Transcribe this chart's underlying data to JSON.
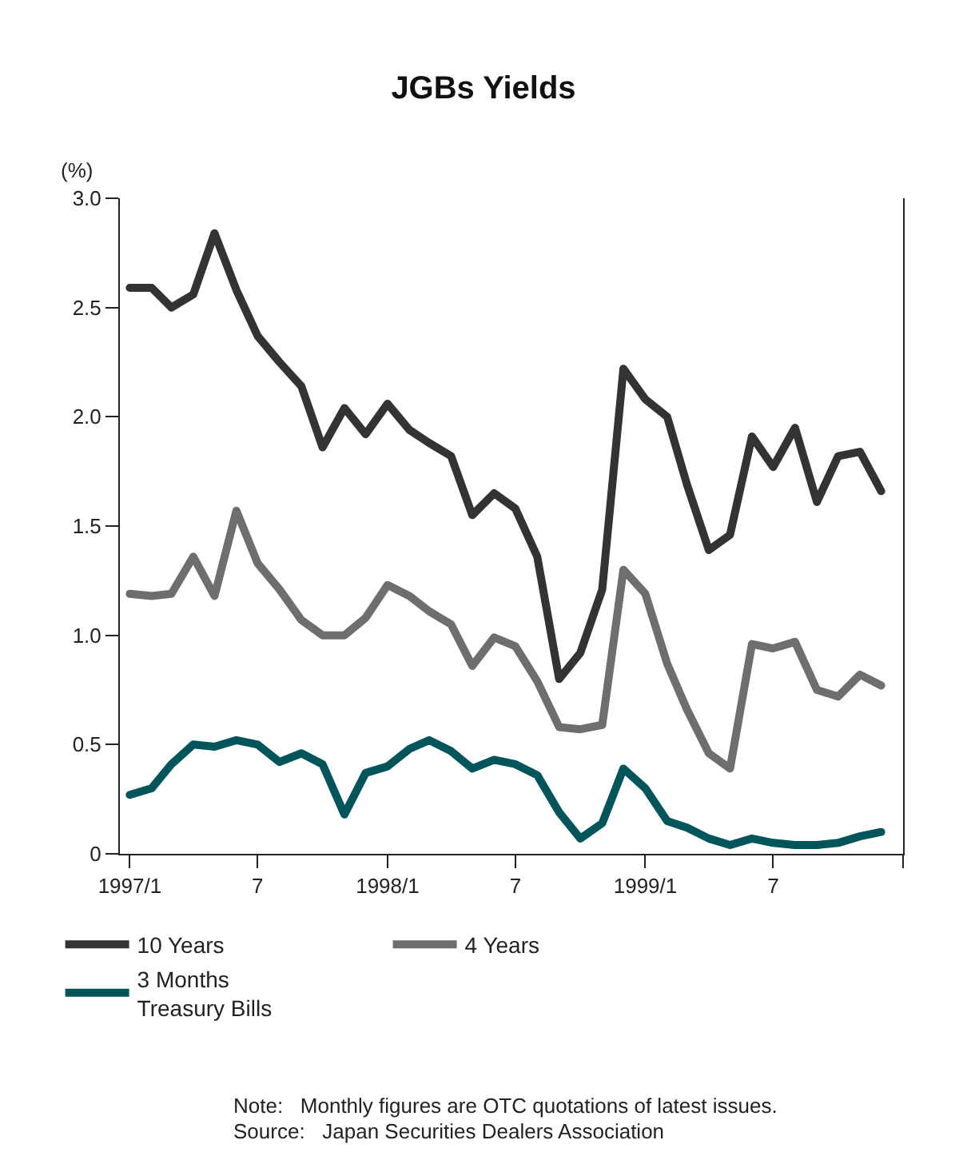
{
  "chart_data": {
    "type": "line",
    "title": "JGBs Yields",
    "ylabel": "(%)",
    "x": [
      "1997-01",
      "1997-02",
      "1997-03",
      "1997-04",
      "1997-05",
      "1997-06",
      "1997-07",
      "1997-08",
      "1997-09",
      "1997-10",
      "1997-11",
      "1997-12",
      "1998-01",
      "1998-02",
      "1998-03",
      "1998-04",
      "1998-05",
      "1998-06",
      "1998-07",
      "1998-08",
      "1998-09",
      "1998-10",
      "1998-11",
      "1998-12",
      "1999-01",
      "1999-02",
      "1999-03",
      "1999-04",
      "1999-05",
      "1999-06",
      "1999-07",
      "1999-08",
      "1999-09",
      "1999-10",
      "1999-11",
      "1999-12"
    ],
    "series": [
      {
        "name": "10 Years",
        "color": "#333333",
        "values": [
          2.59,
          2.59,
          2.5,
          2.56,
          2.84,
          2.58,
          2.37,
          2.25,
          2.14,
          1.86,
          2.04,
          1.92,
          2.06,
          1.94,
          1.88,
          1.82,
          1.55,
          1.65,
          1.58,
          1.36,
          0.8,
          0.92,
          1.21,
          2.22,
          2.08,
          2.0,
          1.69,
          1.39,
          1.46,
          1.91,
          1.77,
          1.95,
          1.61,
          1.82,
          1.84,
          1.66
        ]
      },
      {
        "name": "4 Years",
        "color": "#6e6e6e",
        "values": [
          1.19,
          1.18,
          1.19,
          1.36,
          1.18,
          1.57,
          1.33,
          1.21,
          1.07,
          1.0,
          1.0,
          1.08,
          1.23,
          1.18,
          1.11,
          1.05,
          0.86,
          0.99,
          0.95,
          0.79,
          0.58,
          0.57,
          0.59,
          1.3,
          1.19,
          0.87,
          0.66,
          0.46,
          0.39,
          0.96,
          0.94,
          0.97,
          0.75,
          0.72,
          0.82,
          0.77
        ]
      },
      {
        "name": "3 Months\nTreasury Bills",
        "color": "#00555a",
        "values": [
          0.27,
          0.3,
          0.41,
          0.5,
          0.49,
          0.52,
          0.5,
          0.42,
          0.46,
          0.41,
          0.18,
          0.37,
          0.4,
          0.48,
          0.52,
          0.47,
          0.39,
          0.43,
          0.41,
          0.36,
          0.19,
          0.07,
          0.14,
          0.39,
          0.3,
          0.15,
          0.12,
          0.07,
          0.04,
          0.07,
          0.05,
          0.04,
          0.04,
          0.05,
          0.08,
          0.1
        ]
      }
    ],
    "xlim": [
      "1996-12-18",
      "2000-01-01"
    ],
    "xticks": [
      {
        "value": "1997-01",
        "label": "1997/1"
      },
      {
        "value": "1997-07",
        "label": "7"
      },
      {
        "value": "1998-01",
        "label": "1998/1"
      },
      {
        "value": "1998-07",
        "label": "7"
      },
      {
        "value": "1999-01",
        "label": "1999/1"
      },
      {
        "value": "1999-07",
        "label": "7"
      },
      {
        "value": "2000-01",
        "label": null
      }
    ],
    "ylim": [
      0,
      3.0
    ],
    "yticks": [
      {
        "value": 0,
        "label": "0"
      },
      {
        "value": 0.5,
        "label": "0.5"
      },
      {
        "value": 1.0,
        "label": "1.0"
      },
      {
        "value": 1.5,
        "label": "1.5"
      },
      {
        "value": 2.0,
        "label": "2.0"
      },
      {
        "value": 2.5,
        "label": "2.5"
      },
      {
        "value": 3.0,
        "label": "3.0"
      }
    ],
    "legend": "bottom",
    "marker": "none",
    "line_style": "solid",
    "annotations": [
      "Note:   Monthly figures are OTC quotations of latest issues.",
      "Source:   Japan Securities Dealers Association"
    ]
  }
}
